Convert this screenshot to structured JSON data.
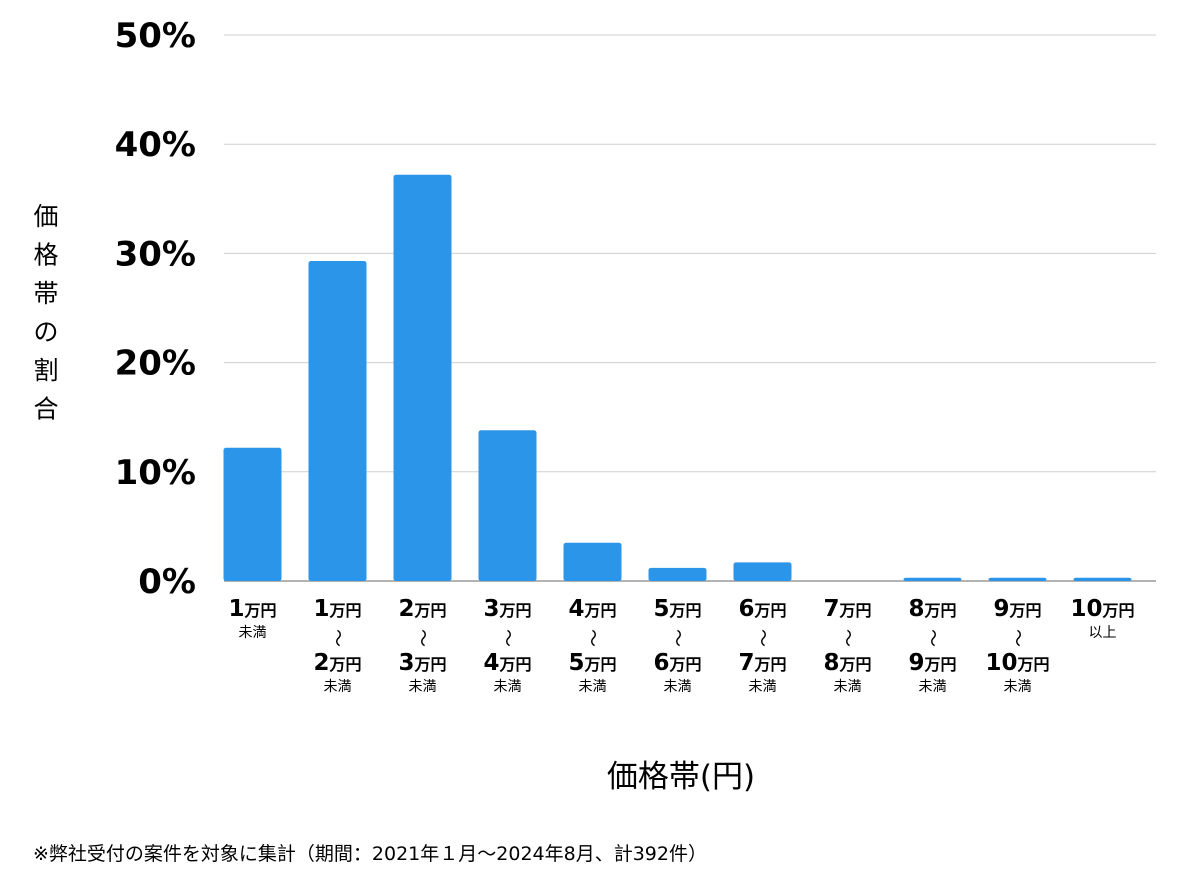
{
  "chart_data": {
    "type": "bar",
    "title": "",
    "xlabel": "価格帯(円)",
    "ylabel": "価格帯の割合",
    "ylim": [
      0,
      50
    ],
    "yticks": [
      "0%",
      "10%",
      "20%",
      "30%",
      "40%",
      "50%"
    ],
    "ytick_values": [
      0,
      10,
      20,
      30,
      40,
      50
    ],
    "grid": true,
    "bar_color": "#2b95e9",
    "categories": [
      {
        "lines": [
          "1万円",
          "未満"
        ]
      },
      {
        "lines": [
          "1万円",
          "〜",
          "2万円",
          "未満"
        ]
      },
      {
        "lines": [
          "2万円",
          "〜",
          "3万円",
          "未満"
        ]
      },
      {
        "lines": [
          "3万円",
          "〜",
          "4万円",
          "未満"
        ]
      },
      {
        "lines": [
          "4万円",
          "〜",
          "5万円",
          "未満"
        ]
      },
      {
        "lines": [
          "5万円",
          "〜",
          "6万円",
          "未満"
        ]
      },
      {
        "lines": [
          "6万円",
          "〜",
          "7万円",
          "未満"
        ]
      },
      {
        "lines": [
          "7万円",
          "〜",
          "8万円",
          "未満"
        ]
      },
      {
        "lines": [
          "8万円",
          "〜",
          "9万円",
          "未満"
        ]
      },
      {
        "lines": [
          "9万円",
          "〜",
          "10万円",
          "未満"
        ]
      },
      {
        "lines": [
          "10万円",
          "以上"
        ]
      }
    ],
    "values": [
      12.2,
      29.3,
      37.2,
      13.8,
      3.5,
      1.2,
      1.7,
      0,
      0.3,
      0.3,
      0.3
    ]
  },
  "footnote": "※弊社受付の案件を対象に集計（期間：2021年１月〜2024年8月、計392件）"
}
